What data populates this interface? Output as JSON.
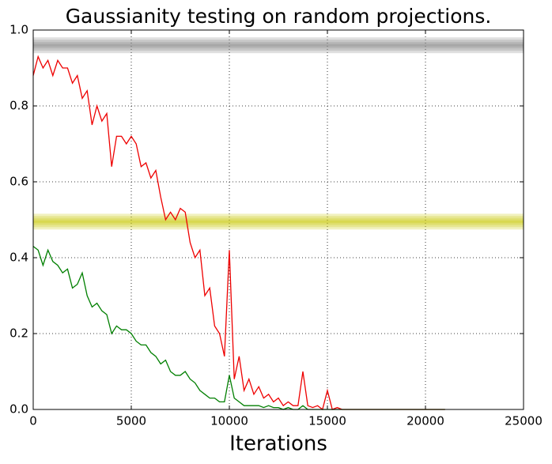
{
  "chart_data": {
    "type": "line",
    "title": "Gaussianity testing on random projections.",
    "x_label": "Iterations",
    "x": [
      0,
      250,
      500,
      750,
      1000,
      1250,
      1500,
      1750,
      2000,
      2250,
      2500,
      2750,
      3000,
      3250,
      3500,
      3750,
      4000,
      4250,
      4500,
      4750,
      5000,
      5250,
      5500,
      5750,
      6000,
      6250,
      6500,
      6750,
      7000,
      7250,
      7500,
      7750,
      8000,
      8250,
      8500,
      8750,
      9000,
      9250,
      9500,
      9750,
      10000,
      10250,
      10500,
      10750,
      11000,
      11250,
      11500,
      11750,
      12000,
      12250,
      12500,
      12750,
      13000,
      13250,
      13500,
      13750,
      14000,
      14250,
      14500,
      14750,
      15000,
      15250,
      15500,
      15750,
      16000,
      16250,
      16500,
      16750,
      17000,
      17250,
      17500,
      17750,
      18000,
      18250,
      18500,
      18750,
      19000,
      19250,
      19500,
      19750,
      20000,
      20250,
      20500,
      20750,
      21000
    ],
    "series": [
      {
        "color": "#ee0000",
        "values": [
          0.88,
          0.93,
          0.9,
          0.92,
          0.88,
          0.92,
          0.9,
          0.9,
          0.86,
          0.88,
          0.82,
          0.84,
          0.75,
          0.8,
          0.76,
          0.78,
          0.64,
          0.72,
          0.72,
          0.7,
          0.72,
          0.7,
          0.64,
          0.65,
          0.61,
          0.63,
          0.56,
          0.5,
          0.52,
          0.5,
          0.53,
          0.52,
          0.44,
          0.4,
          0.42,
          0.3,
          0.32,
          0.22,
          0.2,
          0.14,
          0.42,
          0.08,
          0.14,
          0.05,
          0.08,
          0.04,
          0.06,
          0.03,
          0.04,
          0.02,
          0.03,
          0.01,
          0.02,
          0.01,
          0.01,
          0.1,
          0.01,
          0.005,
          0.01,
          0,
          0.05,
          0,
          0.005,
          0,
          0,
          0,
          0,
          0,
          0,
          0,
          0,
          0,
          0,
          0,
          0,
          0,
          0,
          0,
          0,
          0,
          0,
          0,
          0,
          0,
          0
        ]
      },
      {
        "color": "#007f00",
        "values": [
          0.43,
          0.42,
          0.38,
          0.42,
          0.39,
          0.38,
          0.36,
          0.37,
          0.32,
          0.33,
          0.36,
          0.3,
          0.27,
          0.28,
          0.26,
          0.25,
          0.2,
          0.22,
          0.21,
          0.21,
          0.2,
          0.18,
          0.17,
          0.17,
          0.15,
          0.14,
          0.12,
          0.13,
          0.1,
          0.09,
          0.09,
          0.1,
          0.08,
          0.07,
          0.05,
          0.04,
          0.03,
          0.03,
          0.02,
          0.02,
          0.09,
          0.03,
          0.02,
          0.01,
          0.01,
          0.01,
          0.01,
          0.005,
          0.01,
          0.005,
          0.005,
          0,
          0.005,
          0,
          0,
          0.01,
          0,
          0,
          0,
          0,
          0,
          0,
          0,
          0,
          0,
          0,
          0,
          0,
          0,
          0,
          0,
          0,
          0,
          0,
          0,
          0,
          0,
          0,
          0,
          0,
          0,
          0,
          0,
          0,
          0
        ]
      }
    ],
    "hlines": [
      {
        "value": 0.96,
        "color": "#808080"
      },
      {
        "value": 0.495,
        "color": "#c8c800"
      }
    ],
    "xlim": [
      0,
      25000
    ],
    "xticks": [
      0,
      5000,
      10000,
      15000,
      20000,
      25000
    ],
    "ylim": [
      0,
      1
    ],
    "yticks": [
      {
        "value": 0,
        "label": "0.0"
      },
      0.2,
      0.4,
      0.6,
      0.8,
      {
        "value": 1,
        "label": "1.0"
      }
    ],
    "grid": true
  }
}
